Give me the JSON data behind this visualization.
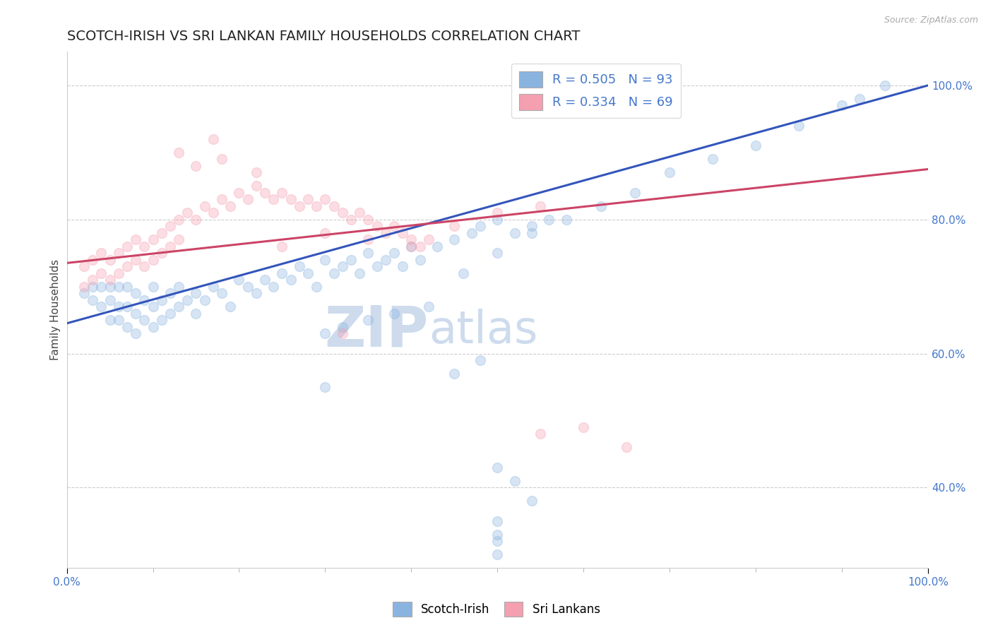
{
  "title": "SCOTCH-IRISH VS SRI LANKAN FAMILY HOUSEHOLDS CORRELATION CHART",
  "source_text": "Source: ZipAtlas.com",
  "ylabel": "Family Households",
  "y_tick_values": [
    0.4,
    0.6,
    0.8,
    1.0
  ],
  "legend_entries": [
    {
      "label": "R = 0.505   N = 93",
      "color": "#8ab4e0"
    },
    {
      "label": "R = 0.334   N = 69",
      "color": "#f4a0b0"
    }
  ],
  "legend_labels_bottom": [
    "Scotch-Irish",
    "Sri Lankans"
  ],
  "blue_color": "#8ab4e0",
  "pink_color": "#f4a0b0",
  "line_blue": "#3355bb",
  "line_pink": "#cc4466",
  "axis_label_color": "#4477cc",
  "watermark_color": "#c8d8ec",
  "blue_scatter_x": [
    0.02,
    0.03,
    0.03,
    0.04,
    0.04,
    0.05,
    0.05,
    0.05,
    0.06,
    0.06,
    0.06,
    0.07,
    0.07,
    0.07,
    0.08,
    0.08,
    0.08,
    0.09,
    0.09,
    0.1,
    0.1,
    0.1,
    0.11,
    0.11,
    0.12,
    0.12,
    0.13,
    0.13,
    0.14,
    0.15,
    0.15,
    0.16,
    0.17,
    0.18,
    0.19,
    0.2,
    0.21,
    0.22,
    0.23,
    0.24,
    0.25,
    0.26,
    0.27,
    0.28,
    0.29,
    0.3,
    0.31,
    0.32,
    0.33,
    0.34,
    0.35,
    0.36,
    0.37,
    0.38,
    0.39,
    0.4,
    0.41,
    0.43,
    0.45,
    0.47,
    0.48,
    0.5,
    0.52,
    0.54,
    0.56,
    0.3,
    0.32,
    0.35,
    0.38,
    0.42,
    0.46,
    0.5,
    0.54,
    0.58,
    0.62,
    0.66,
    0.7,
    0.75,
    0.8,
    0.85,
    0.9,
    0.92,
    0.95,
    0.3,
    0.45,
    0.48,
    0.5,
    0.52,
    0.54,
    0.5,
    0.5,
    0.5,
    0.5
  ],
  "blue_scatter_y": [
    0.69,
    0.68,
    0.7,
    0.67,
    0.7,
    0.65,
    0.68,
    0.7,
    0.65,
    0.67,
    0.7,
    0.64,
    0.67,
    0.7,
    0.63,
    0.66,
    0.69,
    0.65,
    0.68,
    0.64,
    0.67,
    0.7,
    0.65,
    0.68,
    0.66,
    0.69,
    0.67,
    0.7,
    0.68,
    0.66,
    0.69,
    0.68,
    0.7,
    0.69,
    0.67,
    0.71,
    0.7,
    0.69,
    0.71,
    0.7,
    0.72,
    0.71,
    0.73,
    0.72,
    0.7,
    0.74,
    0.72,
    0.73,
    0.74,
    0.72,
    0.75,
    0.73,
    0.74,
    0.75,
    0.73,
    0.76,
    0.74,
    0.76,
    0.77,
    0.78,
    0.79,
    0.8,
    0.78,
    0.79,
    0.8,
    0.63,
    0.64,
    0.65,
    0.66,
    0.67,
    0.72,
    0.75,
    0.78,
    0.8,
    0.82,
    0.84,
    0.87,
    0.89,
    0.91,
    0.94,
    0.97,
    0.98,
    1.0,
    0.55,
    0.57,
    0.59,
    0.43,
    0.41,
    0.38,
    0.35,
    0.33,
    0.3,
    0.32
  ],
  "pink_scatter_x": [
    0.02,
    0.02,
    0.03,
    0.03,
    0.04,
    0.04,
    0.05,
    0.05,
    0.06,
    0.06,
    0.07,
    0.07,
    0.08,
    0.08,
    0.09,
    0.09,
    0.1,
    0.1,
    0.11,
    0.11,
    0.12,
    0.12,
    0.13,
    0.13,
    0.14,
    0.15,
    0.16,
    0.17,
    0.18,
    0.19,
    0.2,
    0.21,
    0.22,
    0.23,
    0.24,
    0.25,
    0.26,
    0.27,
    0.28,
    0.29,
    0.3,
    0.31,
    0.32,
    0.33,
    0.34,
    0.35,
    0.36,
    0.37,
    0.38,
    0.39,
    0.4,
    0.41,
    0.42,
    0.25,
    0.3,
    0.35,
    0.4,
    0.45,
    0.5,
    0.55,
    0.32,
    0.22,
    0.18,
    0.15,
    0.17,
    0.13,
    0.55,
    0.6,
    0.65
  ],
  "pink_scatter_y": [
    0.73,
    0.7,
    0.74,
    0.71,
    0.75,
    0.72,
    0.74,
    0.71,
    0.75,
    0.72,
    0.76,
    0.73,
    0.77,
    0.74,
    0.76,
    0.73,
    0.77,
    0.74,
    0.78,
    0.75,
    0.79,
    0.76,
    0.8,
    0.77,
    0.81,
    0.8,
    0.82,
    0.81,
    0.83,
    0.82,
    0.84,
    0.83,
    0.85,
    0.84,
    0.83,
    0.84,
    0.83,
    0.82,
    0.83,
    0.82,
    0.83,
    0.82,
    0.81,
    0.8,
    0.81,
    0.8,
    0.79,
    0.78,
    0.79,
    0.78,
    0.77,
    0.76,
    0.77,
    0.76,
    0.78,
    0.77,
    0.76,
    0.79,
    0.81,
    0.82,
    0.63,
    0.87,
    0.89,
    0.88,
    0.92,
    0.9,
    0.48,
    0.49,
    0.46
  ],
  "blue_trend_x": [
    0.0,
    1.0
  ],
  "blue_trend_y": [
    0.645,
    1.0
  ],
  "pink_trend_x": [
    0.0,
    1.0
  ],
  "pink_trend_y": [
    0.735,
    0.875
  ],
  "xlim": [
    0.0,
    1.0
  ],
  "ylim": [
    0.28,
    1.05
  ],
  "background_color": "#ffffff",
  "grid_color": "#cccccc",
  "title_fontsize": 14,
  "axis_label_fontsize": 11,
  "tick_fontsize": 11,
  "marker_size": 100,
  "marker_alpha": 0.35,
  "line_width": 2.2
}
